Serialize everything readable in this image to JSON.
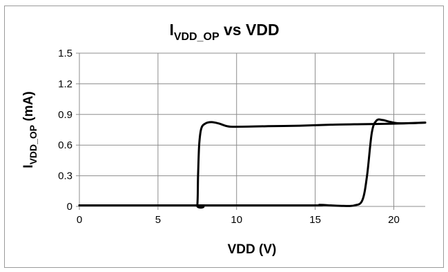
{
  "chart_data": {
    "type": "line",
    "title": {
      "main": "I",
      "sub": "VDD_OP",
      "rest": " vs VDD"
    },
    "xlabel": "VDD (V)",
    "ylabel": {
      "main": "I",
      "sub": "VDD_OP",
      "rest": " (mA)"
    },
    "xlim": [
      0,
      22
    ],
    "ylim": [
      0,
      1.5
    ],
    "x_ticks": [
      0,
      5,
      10,
      15,
      20
    ],
    "y_ticks": [
      0,
      0.3,
      0.6,
      0.9,
      1.2,
      1.5
    ],
    "y_tick_labels": [
      "0",
      "0.3",
      "0.6",
      "0.9",
      "1.2",
      "1.5"
    ],
    "grid": true,
    "legend": "none",
    "line_color": "#000000",
    "series": [
      {
        "points": [
          [
            0,
            0.01
          ],
          [
            7.3,
            0.01
          ],
          [
            7.5,
            0.01
          ],
          [
            7.55,
            0.3
          ],
          [
            7.62,
            0.6
          ],
          [
            7.75,
            0.76
          ],
          [
            8.0,
            0.81
          ],
          [
            8.4,
            0.825
          ],
          [
            8.9,
            0.81
          ],
          [
            9.4,
            0.785
          ],
          [
            10.0,
            0.78
          ],
          [
            12,
            0.785
          ],
          [
            14,
            0.79
          ],
          [
            16,
            0.8
          ],
          [
            18,
            0.805
          ],
          [
            20,
            0.81
          ],
          [
            22,
            0.82
          ]
        ]
      },
      {
        "points": [
          [
            0,
            0.01
          ],
          [
            14,
            0.01
          ],
          [
            15.3,
            0.015
          ],
          [
            16.0,
            0.01
          ],
          [
            16.8,
            0.005
          ],
          [
            17.5,
            0.01
          ],
          [
            18.0,
            0.06
          ],
          [
            18.3,
            0.3
          ],
          [
            18.6,
            0.72
          ],
          [
            18.9,
            0.84
          ],
          [
            19.3,
            0.845
          ],
          [
            19.7,
            0.83
          ],
          [
            20.2,
            0.815
          ],
          [
            21,
            0.815
          ],
          [
            22,
            0.82
          ]
        ]
      }
    ]
  }
}
